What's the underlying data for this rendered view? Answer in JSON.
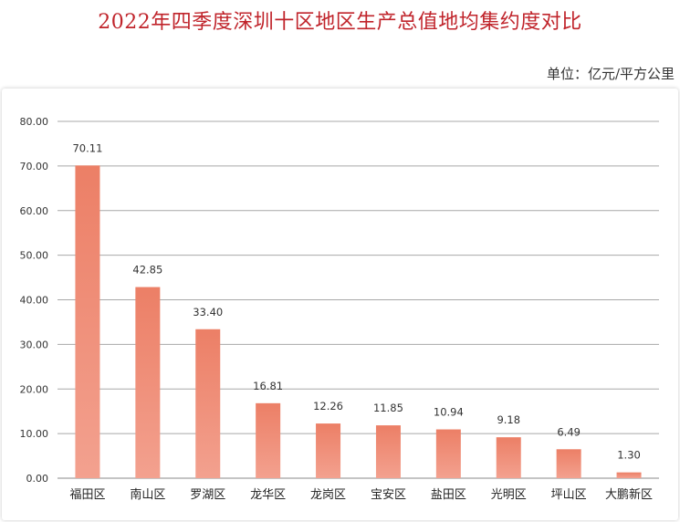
{
  "chart_data": {
    "type": "bar",
    "title": "2022年四季度深圳十区地区生产总值地均集约度对比",
    "unit": "单位：亿元/平方公里",
    "categories": [
      "福田区",
      "南山区",
      "罗湖区",
      "龙华区",
      "龙岗区",
      "宝安区",
      "盐田区",
      "光明区",
      "坪山区",
      "大鹏新区"
    ],
    "values": [
      70.11,
      42.85,
      33.4,
      16.81,
      12.26,
      11.85,
      10.94,
      9.18,
      6.49,
      1.3
    ],
    "value_labels": [
      "70.11",
      "42.85",
      "33.40",
      "16.81",
      "12.26",
      "11.85",
      "10.94",
      "9.18",
      "6.49",
      "1.30"
    ],
    "yticks": [
      "0.00",
      "10.00",
      "20.00",
      "30.00",
      "40.00",
      "50.00",
      "60.00",
      "70.00",
      "80.00"
    ],
    "ylim": [
      0,
      80
    ],
    "grid": true,
    "legend": "none",
    "colors": {
      "bar_top": "#ec7f66",
      "bar_bottom": "#f3a18f",
      "title": "#c0242b"
    }
  }
}
